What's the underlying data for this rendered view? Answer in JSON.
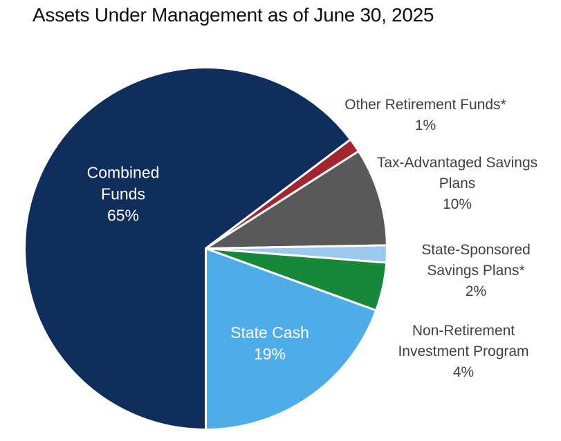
{
  "page": {
    "background_color": "#FFFFFF",
    "text_color": "#404040",
    "title_color": "#0D0D0D"
  },
  "chart_data": {
    "type": "pie",
    "title": "Assets Under Management as of June 30, 2025",
    "legend_position": "none",
    "separator_color": "#FFFFFF",
    "slices": [
      {
        "id": "combined",
        "label": "Combined Funds",
        "value_pct": 65,
        "display": "65%",
        "color": "#102E5B",
        "start_deg": 180,
        "end_deg": 413,
        "label_placement": "inside"
      },
      {
        "id": "other_retirement",
        "label": "Other Retirement Funds*",
        "value_pct": 1,
        "display": "1%",
        "color": "#A32530",
        "start_deg": 413,
        "end_deg": 417.5,
        "label_placement": "outside"
      },
      {
        "id": "tax_advantaged",
        "label": "Tax-Advantaged Savings Plans",
        "value_pct": 10,
        "display": "10%",
        "color": "#595959",
        "start_deg": 417.5,
        "end_deg": 449,
        "label_placement": "outside"
      },
      {
        "id": "state_sponsored",
        "label": "State-Sponsored Savings Plans*",
        "value_pct": 2,
        "display": "2%",
        "color": "#9BC8EE",
        "start_deg": 449,
        "end_deg": 454.5,
        "label_placement": "outside"
      },
      {
        "id": "non_retirement",
        "label": "Non-Retirement Investment Program",
        "value_pct": 4,
        "display": "4%",
        "color": "#17883A",
        "start_deg": 454.5,
        "end_deg": 470,
        "label_placement": "outside"
      },
      {
        "id": "state_cash",
        "label": "State Cash",
        "value_pct": 19,
        "display": "19%",
        "color": "#4EACE9",
        "start_deg": 470,
        "end_deg": 540,
        "label_placement": "inside"
      }
    ]
  },
  "labels": {
    "combined": {
      "lines": [
        "Combined",
        "Funds",
        "65%"
      ]
    },
    "state_cash": {
      "lines": [
        "State Cash",
        "19%"
      ]
    },
    "other_retirement": {
      "lines": [
        "Other Retirement Funds*",
        "1%"
      ]
    },
    "tax_advantaged": {
      "lines": [
        "Tax-Advantaged Savings",
        "Plans",
        "10%"
      ]
    },
    "state_sponsored": {
      "lines": [
        "State-Sponsored",
        "Savings Plans*",
        "2%"
      ]
    },
    "non_retirement": {
      "lines": [
        "Non-Retirement",
        "Investment Program",
        "4%"
      ]
    }
  }
}
